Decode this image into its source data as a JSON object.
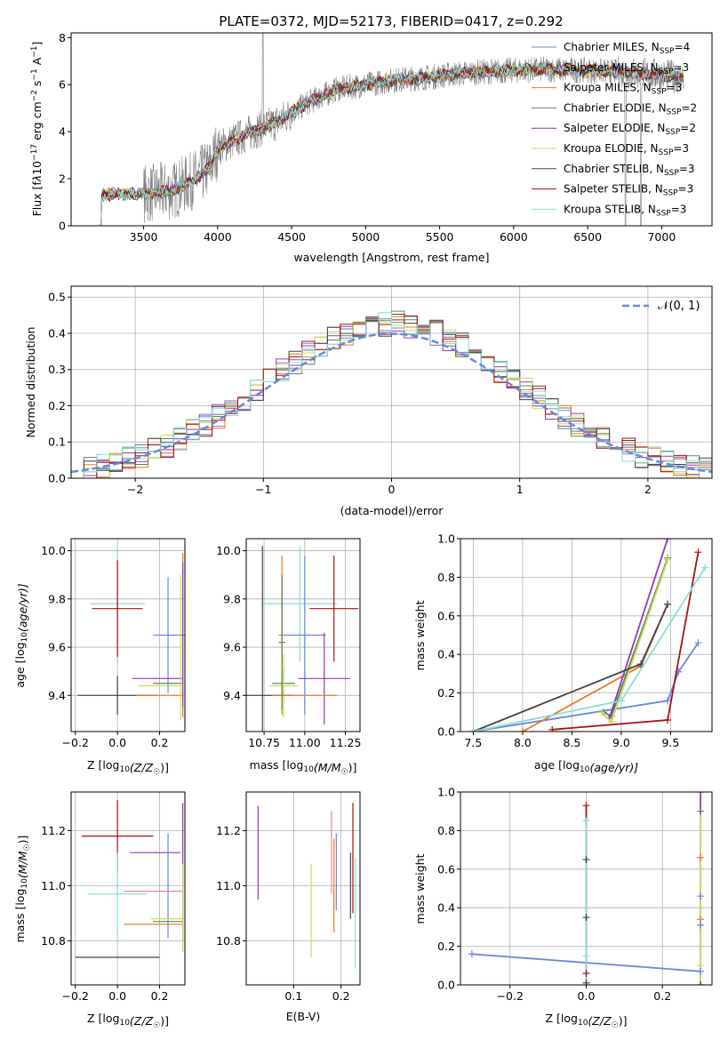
{
  "figure_title": "PLATE=0372, MJD=52173, FIBERID=0417, z=0.292",
  "chart_data": [
    {
      "id": "spectrum",
      "type": "line",
      "title": "PLATE=0372, MJD=52173, FIBERID=0417, z=0.292",
      "xlabel": "wavelength [Angstrom, rest frame]",
      "ylabel_parts": [
        "Flux [f",
        "λ",
        "10",
        "−17",
        " erg cm",
        "−2",
        " s",
        "−1",
        " A",
        "−1",
        "]"
      ],
      "xlim": [
        3010,
        7340
      ],
      "ylim": [
        0,
        8.2
      ],
      "xticks": [
        3500,
        4000,
        4500,
        5000,
        5500,
        6000,
        6500,
        7000
      ],
      "yticks": [
        0,
        2,
        4,
        6,
        8
      ],
      "legend_position": "upper-right",
      "legend": [
        {
          "name": "Chabrier MILES, N",
          "sub": "SSP",
          "tail": "=4",
          "color": "#6688dd"
        },
        {
          "name": "Salpeter MILES, N",
          "sub": "SSP",
          "tail": "=3",
          "color": "#777777"
        },
        {
          "name": "Kroupa MILES, N",
          "sub": "SSP",
          "tail": "=3",
          "color": "#ee7722"
        },
        {
          "name": "Chabrier ELODIE, N",
          "sub": "SSP",
          "tail": "=2",
          "color": "#558855"
        },
        {
          "name": "Salpeter ELODIE, N",
          "sub": "SSP",
          "tail": "=2",
          "color": "#9933bb"
        },
        {
          "name": "Kroupa ELODIE, N",
          "sub": "SSP",
          "tail": "=3",
          "color": "#ccdd55"
        },
        {
          "name": "Chabrier STELIB, N",
          "sub": "SSP",
          "tail": "=3",
          "color": "#444444"
        },
        {
          "name": "Salpeter STELIB, N",
          "sub": "SSP",
          "tail": "=3",
          "color": "#aa1111"
        },
        {
          "name": "Kroupa STELIB, N",
          "sub": "SSP",
          "tail": "=3",
          "color": "#88dddd"
        }
      ],
      "continuum": {
        "wavelength": [
          3200,
          3300,
          3500,
          3700,
          3850,
          3950,
          4000,
          4200,
          4400,
          4600,
          4800,
          5000,
          5200,
          5400,
          5600,
          5800,
          6000,
          6200,
          6500,
          6800,
          7000,
          7150
        ],
        "flux": [
          1.3,
          1.35,
          1.35,
          1.5,
          2.0,
          2.5,
          3.3,
          3.9,
          4.4,
          5.2,
          5.8,
          6.0,
          6.2,
          6.3,
          6.45,
          6.55,
          6.6,
          6.65,
          6.6,
          6.5,
          6.4,
          6.3
        ]
      },
      "data_range": [
        3200,
        7150
      ]
    },
    {
      "id": "residuals",
      "type": "step",
      "xlabel": "(data-model)/error",
      "ylabel": "Normed distribution",
      "xlim": [
        -2.5,
        2.5
      ],
      "ylim": [
        0,
        0.53
      ],
      "xticks": [
        -2,
        -1,
        0,
        1,
        2
      ],
      "yticks": [
        0.0,
        0.1,
        0.2,
        0.3,
        0.4,
        0.5
      ],
      "legend": [
        {
          "name": "𝒩(0, 1)",
          "color": "#6688dd",
          "style": "dashed"
        }
      ],
      "bin_width": 0.1
    },
    {
      "id": "age-vs-Z",
      "type": "errorbar",
      "xlabel": "Z [log10(Z/Z☉)]",
      "xlabel_parts": [
        "Z [log",
        "10",
        "(Z/Z",
        "☉",
        ")]"
      ],
      "ylabel_parts": [
        "age  [log",
        "10",
        "(age/yr)]"
      ],
      "xlim": [
        -0.22,
        0.32
      ],
      "ylim": [
        9.25,
        10.05
      ],
      "xticks": [
        -0.2,
        0.0,
        0.2
      ],
      "yticks": [
        9.4,
        9.6,
        9.8,
        10.0
      ],
      "points": [
        {
          "x": 0.0,
          "xerr": 0.13,
          "y": 9.78,
          "yerr": 0.24,
          "color": "#88dddd"
        },
        {
          "x": 0.0,
          "xerr": 0.12,
          "y": 9.76,
          "yerr": 0.2,
          "color": "#aa1111"
        },
        {
          "x": 0.24,
          "xerr": 0.07,
          "y": 9.65,
          "yerr": 0.24,
          "color": "#6688dd"
        },
        {
          "x": 0.31,
          "xerr": 0.01,
          "y": 9.65,
          "yerr": 0.34,
          "color": "#ee7722"
        },
        {
          "x": 0.31,
          "xerr": 0.01,
          "y": 9.65,
          "yerr": 0.3,
          "color": "#9933bb"
        },
        {
          "x": 0.19,
          "xerr": 0.12,
          "y": 9.47,
          "yerr": 0.0,
          "color": "#9933bb"
        },
        {
          "x": 0.24,
          "xerr": 0.07,
          "y": 9.45,
          "yerr": 0.0,
          "color": "#558855"
        },
        {
          "x": 0.2,
          "xerr": 0.1,
          "y": 9.44,
          "yerr": 0.0,
          "color": "#ccdd55"
        },
        {
          "x": 0.0,
          "xerr": 0.19,
          "y": 9.4,
          "yerr": 0.08,
          "color": "#444444"
        },
        {
          "x": 0.2,
          "xerr": 0.11,
          "y": 9.4,
          "yerr": 0.0,
          "color": "#ee7722"
        },
        {
          "x": 0.3,
          "xerr": 0.01,
          "y": 9.6,
          "yerr": 0.3,
          "color": "#ccdd55"
        }
      ]
    },
    {
      "id": "age-vs-mass",
      "type": "errorbar",
      "xlabel_parts": [
        "mass [log",
        "10",
        "(M/M",
        "☉",
        ")]"
      ],
      "xlim": [
        10.64,
        11.34
      ],
      "ylim": [
        9.25,
        10.05
      ],
      "xticks": [
        10.75,
        11.0,
        11.25
      ],
      "yticks": [
        9.4,
        9.6,
        9.8,
        10.0
      ],
      "points": [
        {
          "x": 10.97,
          "xerr": 0.23,
          "y": 9.78,
          "yerr": 0.24,
          "color": "#88dddd"
        },
        {
          "x": 11.18,
          "xerr": 0.15,
          "y": 9.76,
          "yerr": 0.22,
          "color": "#aa1111"
        },
        {
          "x": 11.0,
          "xerr": 0.13,
          "y": 9.65,
          "yerr": 0.33,
          "color": "#6688dd"
        },
        {
          "x": 10.86,
          "xerr": 0.02,
          "y": 9.65,
          "yerr": 0.33,
          "color": "#ee7722"
        },
        {
          "x": 11.12,
          "xerr": 0.16,
          "y": 9.47,
          "yerr": 0.19,
          "color": "#9933bb"
        },
        {
          "x": 10.87,
          "xerr": 0.07,
          "y": 9.45,
          "yerr": 0.06,
          "color": "#558855"
        },
        {
          "x": 10.87,
          "xerr": 0.09,
          "y": 9.44,
          "yerr": 0.13,
          "color": "#ccdd55"
        },
        {
          "x": 10.74,
          "xerr": 0.19,
          "y": 9.4,
          "yerr": 0.62,
          "color": "#444444"
        },
        {
          "x": 11.0,
          "xerr": 0.2,
          "y": 9.4,
          "yerr": 0.0,
          "color": "#ee7722"
        },
        {
          "x": 10.86,
          "xerr": 0.02,
          "y": 9.62,
          "yerr": 0.28,
          "color": "#558855"
        }
      ]
    },
    {
      "id": "massweight-vs-age",
      "type": "line",
      "xlabel_parts": [
        "age  [log",
        "10",
        "(age/yr)]"
      ],
      "ylabel": "mass weight",
      "xlim": [
        7.37,
        9.92
      ],
      "ylim": [
        0,
        1.0
      ],
      "xticks": [
        7.5,
        8.0,
        8.5,
        9.0,
        9.5
      ],
      "yticks": [
        0.0,
        0.2,
        0.4,
        0.6,
        0.8,
        1.0
      ],
      "series": [
        {
          "color": "#6688dd",
          "x": [
            7.5,
            9.47,
            9.58,
            9.78
          ],
          "y": [
            0.0,
            0.16,
            0.31,
            0.46
          ]
        },
        {
          "color": "#ee7722",
          "x": [
            8.0,
            9.2,
            9.47
          ],
          "y": [
            0.0,
            0.34,
            0.66
          ]
        },
        {
          "color": "#558855",
          "x": [
            8.82,
            8.9,
            9.47
          ],
          "y": [
            0.1,
            0.08,
            0.9
          ]
        },
        {
          "color": "#9933bb",
          "x": [
            8.88,
            9.47
          ],
          "y": [
            0.07,
            1.0
          ]
        },
        {
          "color": "#ccdd55",
          "x": [
            8.8,
            8.9,
            9.47
          ],
          "y": [
            0.1,
            0.05,
            0.89
          ]
        },
        {
          "color": "#444444",
          "x": [
            7.5,
            9.2,
            9.47
          ],
          "y": [
            0.0,
            0.35,
            0.66
          ]
        },
        {
          "color": "#aa1111",
          "x": [
            8.3,
            9.47,
            9.78
          ],
          "y": [
            0.01,
            0.06,
            0.93
          ]
        },
        {
          "color": "#88dddd",
          "x": [
            7.5,
            9.0,
            9.85
          ],
          "y": [
            0.0,
            0.16,
            0.85
          ]
        }
      ]
    },
    {
      "id": "mass-vs-Z",
      "type": "errorbar",
      "xlabel_parts": [
        "Z [log",
        "10",
        "(Z/Z",
        "☉",
        ")]"
      ],
      "ylabel_parts": [
        "mass [log",
        "10",
        "(M/M",
        "☉",
        ")]"
      ],
      "xlim": [
        -0.22,
        0.32
      ],
      "ylim": [
        10.64,
        11.34
      ],
      "xticks": [
        -0.2,
        0.0,
        0.2
      ],
      "yticks": [
        10.8,
        11.0,
        11.2
      ],
      "points": [
        {
          "x": 0.0,
          "xerr": 0.17,
          "y": 11.18,
          "yerr": 0.13,
          "color": "#aa1111"
        },
        {
          "x": 0.18,
          "xerr": 0.12,
          "y": 11.12,
          "yerr": 0.0,
          "color": "#9933bb"
        },
        {
          "x": 0.24,
          "xerr": 0.0,
          "y": 11.0,
          "yerr": 0.19,
          "color": "#6688dd"
        },
        {
          "x": 0.31,
          "xerr": 0.0,
          "y": 11.05,
          "yerr": 0.25,
          "color": "#9933bb"
        },
        {
          "x": 0.0,
          "xerr": 0.14,
          "y": 10.97,
          "yerr": 0.15,
          "color": "#88dddd"
        },
        {
          "x": 0.17,
          "xerr": 0.14,
          "y": 10.98,
          "yerr": 0.0,
          "color": "#dd88aa"
        },
        {
          "x": 0.24,
          "xerr": 0.07,
          "y": 10.87,
          "yerr": 0.0,
          "color": "#558855"
        },
        {
          "x": 0.24,
          "xerr": 0.08,
          "y": 10.88,
          "yerr": 0.0,
          "color": "#ccdd55"
        },
        {
          "x": 0.17,
          "xerr": 0.14,
          "y": 10.86,
          "yerr": 0.0,
          "color": "#ee7722"
        },
        {
          "x": 0.31,
          "xerr": 0.0,
          "y": 10.92,
          "yerr": 0.16,
          "color": "#ccdd55"
        },
        {
          "x": 0.0,
          "xerr": 0.2,
          "y": 10.74,
          "yerr": 0.0,
          "color": "#444444"
        }
      ]
    },
    {
      "id": "mass-vs-EBV",
      "type": "errorbar",
      "xlabel": "E(B-V)",
      "xlim": [
        0.0,
        0.24
      ],
      "ylim": [
        10.64,
        11.34
      ],
      "xticks": [
        0.1,
        0.2
      ],
      "yticks": [
        10.8,
        11.0,
        11.2
      ],
      "points": [
        {
          "x": 0.025,
          "y": 11.12,
          "yerr": 0.17,
          "color": "#9933bb"
        },
        {
          "x": 0.137,
          "y": 10.91,
          "yerr": 0.17,
          "color": "#ccdd55"
        },
        {
          "x": 0.18,
          "y": 11.12,
          "yerr": 0.15,
          "color": "#dd88aa"
        },
        {
          "x": 0.185,
          "y": 11.0,
          "yerr": 0.17,
          "color": "#ee7722"
        },
        {
          "x": 0.19,
          "y": 11.05,
          "yerr": 0.14,
          "color": "#6688dd"
        },
        {
          "x": 0.22,
          "y": 11.0,
          "yerr": 0.12,
          "color": "#444444"
        },
        {
          "x": 0.225,
          "y": 11.1,
          "yerr": 0.2,
          "color": "#aa1111"
        },
        {
          "x": 0.23,
          "y": 10.9,
          "yerr": 0.2,
          "color": "#88dddd"
        }
      ]
    },
    {
      "id": "massweight-vs-Z",
      "type": "line",
      "xlabel_parts": [
        "Z [log",
        "10",
        "(Z/Z",
        "☉",
        ")]"
      ],
      "ylabel": "mass weight",
      "xlim": [
        -0.33,
        0.33
      ],
      "ylim": [
        0,
        1.0
      ],
      "xticks": [
        -0.2,
        0.0,
        0.2
      ],
      "yticks": [
        0.0,
        0.2,
        0.4,
        0.6,
        0.8,
        1.0
      ],
      "series": [
        {
          "color": "#6688dd",
          "x": [
            -0.3,
            0.3
          ],
          "y": [
            0.16,
            0.07
          ]
        },
        {
          "color": "#aa1111",
          "x": [
            0.0,
            0.0
          ],
          "y": [
            0.0,
            0.93
          ]
        },
        {
          "color": "#88dddd",
          "x": [
            0.0,
            0.0
          ],
          "y": [
            0.0,
            0.85
          ]
        },
        {
          "color": "#9933bb",
          "x": [
            0.3,
            0.3
          ],
          "y": [
            0.0,
            1.0
          ]
        },
        {
          "color": "#ccdd55",
          "x": [
            0.3,
            0.3
          ],
          "y": [
            0.0,
            0.89
          ]
        }
      ],
      "markers": [
        {
          "x": 0.0,
          "y": 0.93,
          "color": "#aa1111"
        },
        {
          "x": 0.0,
          "y": 0.85,
          "color": "#88dddd"
        },
        {
          "x": 0.0,
          "y": 0.65,
          "color": "#444444"
        },
        {
          "x": 0.0,
          "y": 0.35,
          "color": "#444444"
        },
        {
          "x": 0.0,
          "y": 0.15,
          "color": "#88dddd"
        },
        {
          "x": 0.0,
          "y": 0.06,
          "color": "#aa1111"
        },
        {
          "x": 0.0,
          "y": 0.01,
          "color": "#444444"
        },
        {
          "x": 0.3,
          "y": 1.0,
          "color": "#9933bb"
        },
        {
          "x": 0.3,
          "y": 0.9,
          "color": "#558855"
        },
        {
          "x": 0.3,
          "y": 0.66,
          "color": "#ee7722"
        },
        {
          "x": 0.3,
          "y": 0.46,
          "color": "#6688dd"
        },
        {
          "x": 0.3,
          "y": 0.34,
          "color": "#ee7722"
        },
        {
          "x": 0.3,
          "y": 0.31,
          "color": "#6688dd"
        },
        {
          "x": 0.3,
          "y": 0.1,
          "color": "#ccdd55"
        },
        {
          "x": 0.3,
          "y": 0.07,
          "color": "#6688dd"
        },
        {
          "x": 0.3,
          "y": 0.0,
          "color": "#444444"
        }
      ]
    }
  ]
}
